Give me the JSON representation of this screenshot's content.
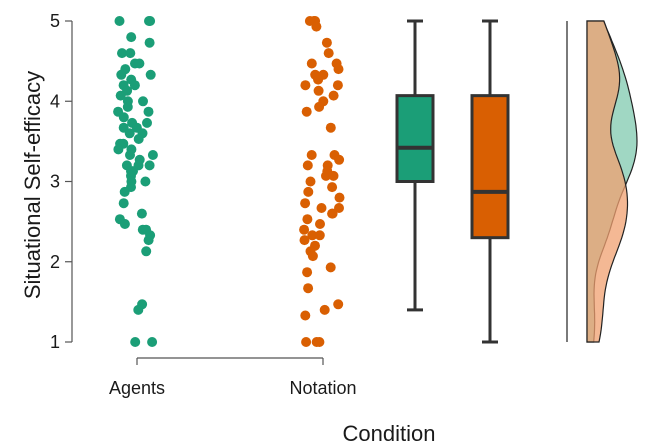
{
  "chart_data": {
    "type": "scatter",
    "title": "",
    "xlabel": "Condition",
    "ylabel": "Situational Self-efficacy",
    "ylim": [
      1,
      5
    ],
    "yticks": [
      "1",
      "2",
      "3",
      "4",
      "5"
    ],
    "categories": [
      "Agents",
      "Notation"
    ],
    "grid": false,
    "legend": "none",
    "colors": {
      "Agents": "#1b9e77",
      "Notation": "#d95f02",
      "Agents_fill": "#1b9e77",
      "Notation_fill": "#f0a070",
      "Agents_density": "#8fd0b8"
    },
    "series": [
      {
        "name": "Agents",
        "values": [
          5.0,
          5.0,
          5.0,
          4.8,
          4.73,
          4.6,
          4.6,
          4.47,
          4.47,
          4.4,
          4.33,
          4.33,
          4.27,
          4.2,
          4.2,
          4.13,
          4.07,
          4.0,
          4.0,
          3.93,
          3.87,
          3.87,
          3.8,
          3.73,
          3.73,
          3.67,
          3.67,
          3.6,
          3.6,
          3.53,
          3.47,
          3.47,
          3.4,
          3.4,
          3.33,
          3.33,
          3.27,
          3.2,
          3.2,
          3.2,
          3.13,
          3.13,
          3.07,
          3.0,
          3.0,
          2.93,
          2.87,
          2.73,
          2.6,
          2.53,
          2.47,
          2.4,
          2.4,
          2.33,
          2.27,
          2.13,
          1.47,
          1.4,
          1.0,
          1.0
        ]
      },
      {
        "name": "Notation",
        "values": [
          5.0,
          5.0,
          5.0,
          4.93,
          4.73,
          4.6,
          4.47,
          4.47,
          4.4,
          4.33,
          4.33,
          4.27,
          4.2,
          4.2,
          4.13,
          4.07,
          4.0,
          3.93,
          3.87,
          3.67,
          3.33,
          3.33,
          3.27,
          3.2,
          3.2,
          3.13,
          3.07,
          3.07,
          3.0,
          2.93,
          2.87,
          2.8,
          2.73,
          2.67,
          2.67,
          2.6,
          2.6,
          2.53,
          2.47,
          2.4,
          2.33,
          2.33,
          2.27,
          2.2,
          2.13,
          2.07,
          1.93,
          1.87,
          1.67,
          1.47,
          1.4,
          1.33,
          1.0,
          1.0,
          1.0
        ]
      }
    ],
    "boxplots": [
      {
        "name": "Agents",
        "min": 1.4,
        "q1": 3.0,
        "median": 3.42,
        "q3": 4.07,
        "max": 5.0
      },
      {
        "name": "Notation",
        "min": 1.0,
        "q1": 2.3,
        "median": 2.87,
        "q3": 4.07,
        "max": 5.0
      }
    ]
  }
}
